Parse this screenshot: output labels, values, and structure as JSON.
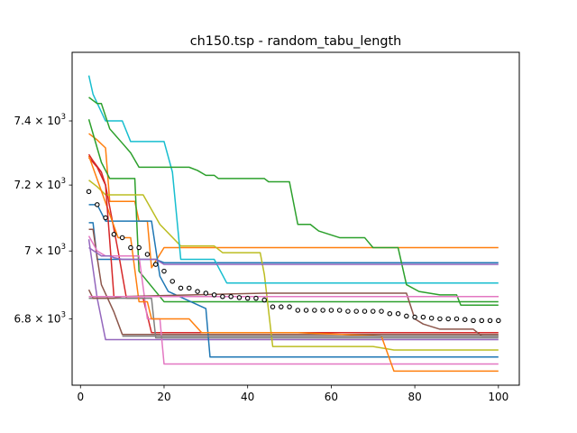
{
  "chart_data": {
    "type": "line",
    "title": "ch150.tsp - random_tabu_length",
    "xlabel": "",
    "ylabel": "",
    "y_scale": "log",
    "xlim": [
      -2,
      105
    ],
    "ylim": [
      6610,
      7620
    ],
    "x_ticks": [
      {
        "value": 0,
        "label": "0"
      },
      {
        "value": 20,
        "label": "20"
      },
      {
        "value": 40,
        "label": "40"
      },
      {
        "value": 60,
        "label": "60"
      },
      {
        "value": 80,
        "label": "80"
      },
      {
        "value": 100,
        "label": "100"
      }
    ],
    "y_ticks": [
      {
        "value": 6800,
        "mantissa": "6.8",
        "base": "10",
        "exponent": "3"
      },
      {
        "value": 7000,
        "mantissa": "7",
        "base": "10",
        "exponent": "3"
      },
      {
        "value": 7200,
        "mantissa": "7.2",
        "base": "10",
        "exponent": "3"
      },
      {
        "value": 7400,
        "mantissa": "7.4",
        "base": "10",
        "exponent": "3"
      }
    ],
    "grid": false,
    "legend": "none",
    "series": [
      {
        "color": "#1f77b4",
        "points": [
          [
            2,
            7085
          ],
          [
            3,
            7085
          ],
          [
            4,
            6975
          ],
          [
            18,
            6975
          ],
          [
            20,
            6965
          ],
          [
            100,
            6965
          ]
        ]
      },
      {
        "color": "#ff7f0e",
        "points": [
          [
            2,
            7360
          ],
          [
            4,
            7340
          ],
          [
            6,
            7315
          ],
          [
            7,
            7150
          ],
          [
            13,
            7150
          ],
          [
            14,
            7090
          ],
          [
            16,
            7090
          ],
          [
            17,
            6950
          ],
          [
            20,
            7010
          ],
          [
            100,
            7010
          ]
        ]
      },
      {
        "color": "#2ca02c",
        "points": [
          [
            2,
            7405
          ],
          [
            5,
            7270
          ],
          [
            7,
            7220
          ],
          [
            13,
            7220
          ],
          [
            14,
            6940
          ],
          [
            20,
            6850
          ],
          [
            100,
            6850
          ]
        ]
      },
      {
        "color": "#d62728",
        "points": [
          [
            2,
            7285
          ],
          [
            4,
            7255
          ],
          [
            6,
            7200
          ],
          [
            9,
            7000
          ],
          [
            11,
            6860
          ],
          [
            15,
            6860
          ],
          [
            17,
            6760
          ],
          [
            100,
            6760
          ]
        ]
      },
      {
        "color": "#9467bd",
        "points": [
          [
            2,
            7035
          ],
          [
            4,
            6860
          ],
          [
            6,
            6740
          ],
          [
            100,
            6740
          ]
        ]
      },
      {
        "color": "#8c564b",
        "points": [
          [
            2,
            7065
          ],
          [
            3,
            7065
          ],
          [
            4,
            6980
          ],
          [
            5,
            6900
          ],
          [
            8,
            6820
          ],
          [
            10,
            6755
          ],
          [
            100,
            6755
          ]
        ]
      },
      {
        "color": "#e377c2",
        "points": [
          [
            2,
            7045
          ],
          [
            4,
            7000
          ],
          [
            6,
            6985
          ],
          [
            14,
            6985
          ],
          [
            16,
            6800
          ],
          [
            19,
            6800
          ],
          [
            20,
            6670
          ],
          [
            100,
            6670
          ]
        ]
      },
      {
        "color": "#7f7f7f",
        "points": [
          [
            2,
            6860
          ],
          [
            17,
            6860
          ],
          [
            18,
            6745
          ],
          [
            100,
            6745
          ]
        ]
      },
      {
        "color": "#bcbd22",
        "points": [
          [
            2,
            7215
          ],
          [
            4,
            7195
          ],
          [
            6,
            7170
          ],
          [
            15,
            7170
          ],
          [
            19,
            7080
          ],
          [
            24,
            7015
          ],
          [
            32,
            7015
          ],
          [
            34,
            6995
          ],
          [
            43,
            6995
          ],
          [
            44,
            6930
          ],
          [
            46,
            6720
          ],
          [
            56,
            6720
          ],
          [
            70,
            6720
          ],
          [
            75,
            6710
          ],
          [
            100,
            6710
          ]
        ]
      },
      {
        "color": "#17becf",
        "points": [
          [
            2,
            7545
          ],
          [
            3,
            7485
          ],
          [
            6,
            7400
          ],
          [
            10,
            7400
          ],
          [
            12,
            7335
          ],
          [
            20,
            7335
          ],
          [
            22,
            7240
          ],
          [
            24,
            6975
          ],
          [
            32,
            6975
          ],
          [
            35,
            6905
          ],
          [
            100,
            6905
          ]
        ]
      },
      {
        "color": "#1f77b4",
        "points": [
          [
            2,
            7140
          ],
          [
            4,
            7140
          ],
          [
            6,
            7090
          ],
          [
            17,
            7090
          ],
          [
            19,
            6925
          ],
          [
            21,
            6880
          ],
          [
            30,
            6830
          ],
          [
            31,
            6690
          ],
          [
            100,
            6690
          ]
        ]
      },
      {
        "color": "#ff7f0e",
        "points": [
          [
            2,
            7290
          ],
          [
            9,
            7040
          ],
          [
            12,
            7040
          ],
          [
            14,
            6850
          ],
          [
            16,
            6850
          ],
          [
            17,
            6800
          ],
          [
            26,
            6800
          ],
          [
            29,
            6760
          ],
          [
            52,
            6760
          ],
          [
            72,
            6750
          ],
          [
            75,
            6650
          ],
          [
            100,
            6650
          ]
        ]
      },
      {
        "color": "#2ca02c",
        "points": [
          [
            2,
            7475
          ],
          [
            4,
            7455
          ],
          [
            5,
            7455
          ],
          [
            7,
            7375
          ],
          [
            10,
            7330
          ],
          [
            12,
            7300
          ],
          [
            14,
            7255
          ],
          [
            26,
            7255
          ],
          [
            28,
            7245
          ],
          [
            30,
            7230
          ],
          [
            32,
            7230
          ],
          [
            33,
            7220
          ],
          [
            44,
            7220
          ],
          [
            45,
            7210
          ],
          [
            50,
            7210
          ],
          [
            52,
            7080
          ],
          [
            55,
            7080
          ],
          [
            57,
            7060
          ],
          [
            62,
            7040
          ],
          [
            68,
            7040
          ],
          [
            70,
            7010
          ],
          [
            76,
            7010
          ],
          [
            78,
            6900
          ],
          [
            81,
            6880
          ],
          [
            86,
            6870
          ],
          [
            90,
            6870
          ],
          [
            91,
            6840
          ],
          [
            100,
            6840
          ]
        ]
      },
      {
        "color": "#d62728",
        "points": [
          [
            2,
            7295
          ],
          [
            3,
            7275
          ],
          [
            5,
            7240
          ],
          [
            6,
            7200
          ],
          [
            8,
            6865
          ],
          [
            17,
            6865
          ],
          [
            24,
            6865
          ],
          [
            26,
            6865
          ],
          [
            44,
            6865
          ],
          [
            100,
            6865
          ]
        ]
      },
      {
        "color": "#9467bd",
        "points": [
          [
            2,
            7010
          ],
          [
            5,
            6985
          ],
          [
            7,
            6985
          ],
          [
            8,
            6980
          ],
          [
            10,
            6975
          ],
          [
            18,
            6975
          ],
          [
            20,
            6960
          ],
          [
            30,
            6960
          ],
          [
            32,
            6960
          ],
          [
            34,
            6960
          ],
          [
            100,
            6960
          ]
        ]
      },
      {
        "color": "#8c564b",
        "points": [
          [
            2,
            6885
          ],
          [
            3,
            6860
          ],
          [
            8,
            6860
          ],
          [
            10,
            6865
          ],
          [
            44,
            6875
          ],
          [
            60,
            6875
          ],
          [
            78,
            6875
          ],
          [
            80,
            6800
          ],
          [
            82,
            6785
          ],
          [
            86,
            6770
          ],
          [
            94,
            6770
          ],
          [
            96,
            6750
          ],
          [
            100,
            6750
          ]
        ]
      },
      {
        "color": "#e377c2",
        "points": [
          [
            2,
            6865
          ],
          [
            40,
            6865
          ],
          [
            100,
            6865
          ]
        ]
      },
      {
        "color": "#7f7f7f",
        "points": [
          [
            10,
            6750
          ],
          [
            100,
            6750
          ]
        ]
      }
    ],
    "mean_points": {
      "color": "#000000",
      "fill": "#ffffff",
      "points": [
        [
          2,
          7180
        ],
        [
          4,
          7140
        ],
        [
          6,
          7100
        ],
        [
          8,
          7050
        ],
        [
          10,
          7040
        ],
        [
          12,
          7010
        ],
        [
          14,
          7010
        ],
        [
          16,
          6990
        ],
        [
          18,
          6960
        ],
        [
          20,
          6940
        ],
        [
          22,
          6910
        ],
        [
          24,
          6890
        ],
        [
          26,
          6890
        ],
        [
          28,
          6880
        ],
        [
          30,
          6875
        ],
        [
          32,
          6870
        ],
        [
          34,
          6865
        ],
        [
          36,
          6865
        ],
        [
          38,
          6862
        ],
        [
          40,
          6860
        ],
        [
          42,
          6860
        ],
        [
          44,
          6855
        ],
        [
          46,
          6835
        ],
        [
          48,
          6835
        ],
        [
          50,
          6835
        ],
        [
          52,
          6825
        ],
        [
          54,
          6825
        ],
        [
          56,
          6825
        ],
        [
          58,
          6825
        ],
        [
          60,
          6825
        ],
        [
          62,
          6825
        ],
        [
          64,
          6822
        ],
        [
          66,
          6822
        ],
        [
          68,
          6822
        ],
        [
          70,
          6822
        ],
        [
          72,
          6822
        ],
        [
          74,
          6815
        ],
        [
          76,
          6815
        ],
        [
          78,
          6808
        ],
        [
          80,
          6805
        ],
        [
          82,
          6805
        ],
        [
          84,
          6802
        ],
        [
          86,
          6800
        ],
        [
          88,
          6800
        ],
        [
          90,
          6800
        ],
        [
          92,
          6798
        ],
        [
          94,
          6795
        ],
        [
          96,
          6795
        ],
        [
          98,
          6795
        ],
        [
          100,
          6795
        ]
      ]
    }
  }
}
